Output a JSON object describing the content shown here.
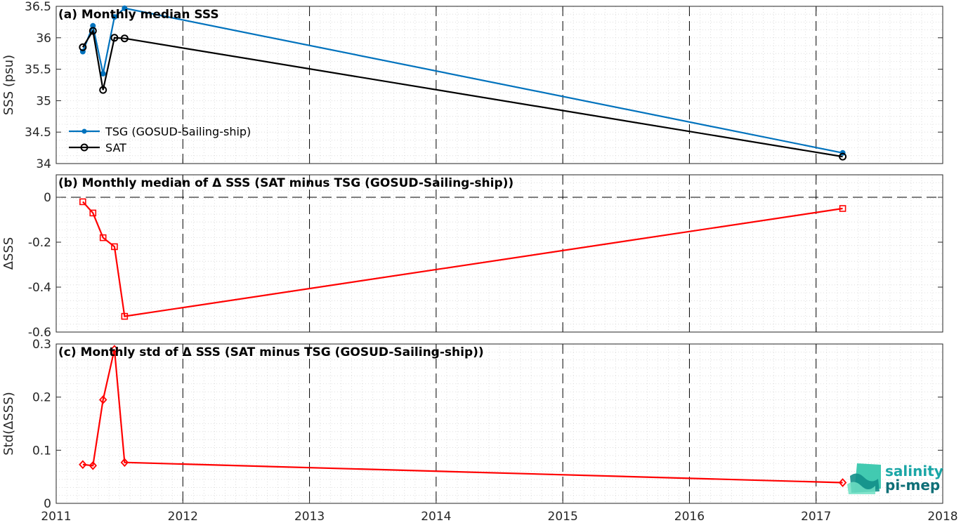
{
  "logo": {
    "line1": "salinity",
    "line2": "pi-mep"
  },
  "xaxis": {
    "min": 2011,
    "max": 2018,
    "ticks": [
      "2011",
      "2012",
      "2013",
      "2014",
      "2015",
      "2016",
      "2017",
      "2018"
    ]
  },
  "chart_data": [
    {
      "type": "line",
      "title": "(a) Monthly median SSS",
      "ylabel": "SSS (psu)",
      "xlabel": "",
      "ylim": [
        34,
        36.5
      ],
      "yticks": [
        "34",
        "34.5",
        "35",
        "35.5",
        "36",
        "36.5"
      ],
      "grid": "minor dotted",
      "legend": "bottom-left",
      "series": [
        {
          "name": "TSG (GOSUD-Sailing-ship)",
          "color": "#0072bd",
          "marker": "dot",
          "x": [
            2011.21,
            2011.29,
            2011.37,
            2011.46,
            2011.54,
            2017.21
          ],
          "y": [
            35.78,
            36.19,
            35.43,
            36.33,
            36.47,
            34.17
          ]
        },
        {
          "name": "SAT",
          "color": "#000000",
          "marker": "circle",
          "x": [
            2011.21,
            2011.29,
            2011.37,
            2011.46,
            2011.54,
            2017.21
          ],
          "y": [
            35.85,
            36.11,
            35.17,
            36.0,
            35.99,
            34.11
          ]
        }
      ]
    },
    {
      "type": "line",
      "title": "(b) Monthly median of Δ SSS (SAT minus TSG (GOSUD-Sailing-ship))",
      "ylabel": "ΔSSS",
      "xlabel": "",
      "ylim": [
        -0.6,
        0.1
      ],
      "yticks": [
        "-0.6",
        "-0.4",
        "-0.2",
        "0"
      ],
      "zero_line": true,
      "series": [
        {
          "name": "",
          "color": "#ff0000",
          "marker": "square",
          "x": [
            2011.21,
            2011.29,
            2011.37,
            2011.46,
            2011.54,
            2017.21
          ],
          "y": [
            -0.02,
            -0.07,
            -0.18,
            -0.22,
            -0.53,
            -0.05
          ]
        }
      ]
    },
    {
      "type": "line",
      "title": "(c) Monthly std of Δ SSS (SAT minus TSG (GOSUD-Sailing-ship))",
      "ylabel": "Std(ΔSSS)",
      "xlabel": "",
      "ylim": [
        0,
        0.3
      ],
      "yticks": [
        "0",
        "0.1",
        "0.2",
        "0.3"
      ],
      "series": [
        {
          "name": "",
          "color": "#ff0000",
          "marker": "diamond",
          "x": [
            2011.21,
            2011.29,
            2011.37,
            2011.46,
            2011.54,
            2017.21
          ],
          "y": [
            0.073,
            0.071,
            0.195,
            0.29,
            0.077,
            0.039
          ]
        }
      ]
    }
  ]
}
